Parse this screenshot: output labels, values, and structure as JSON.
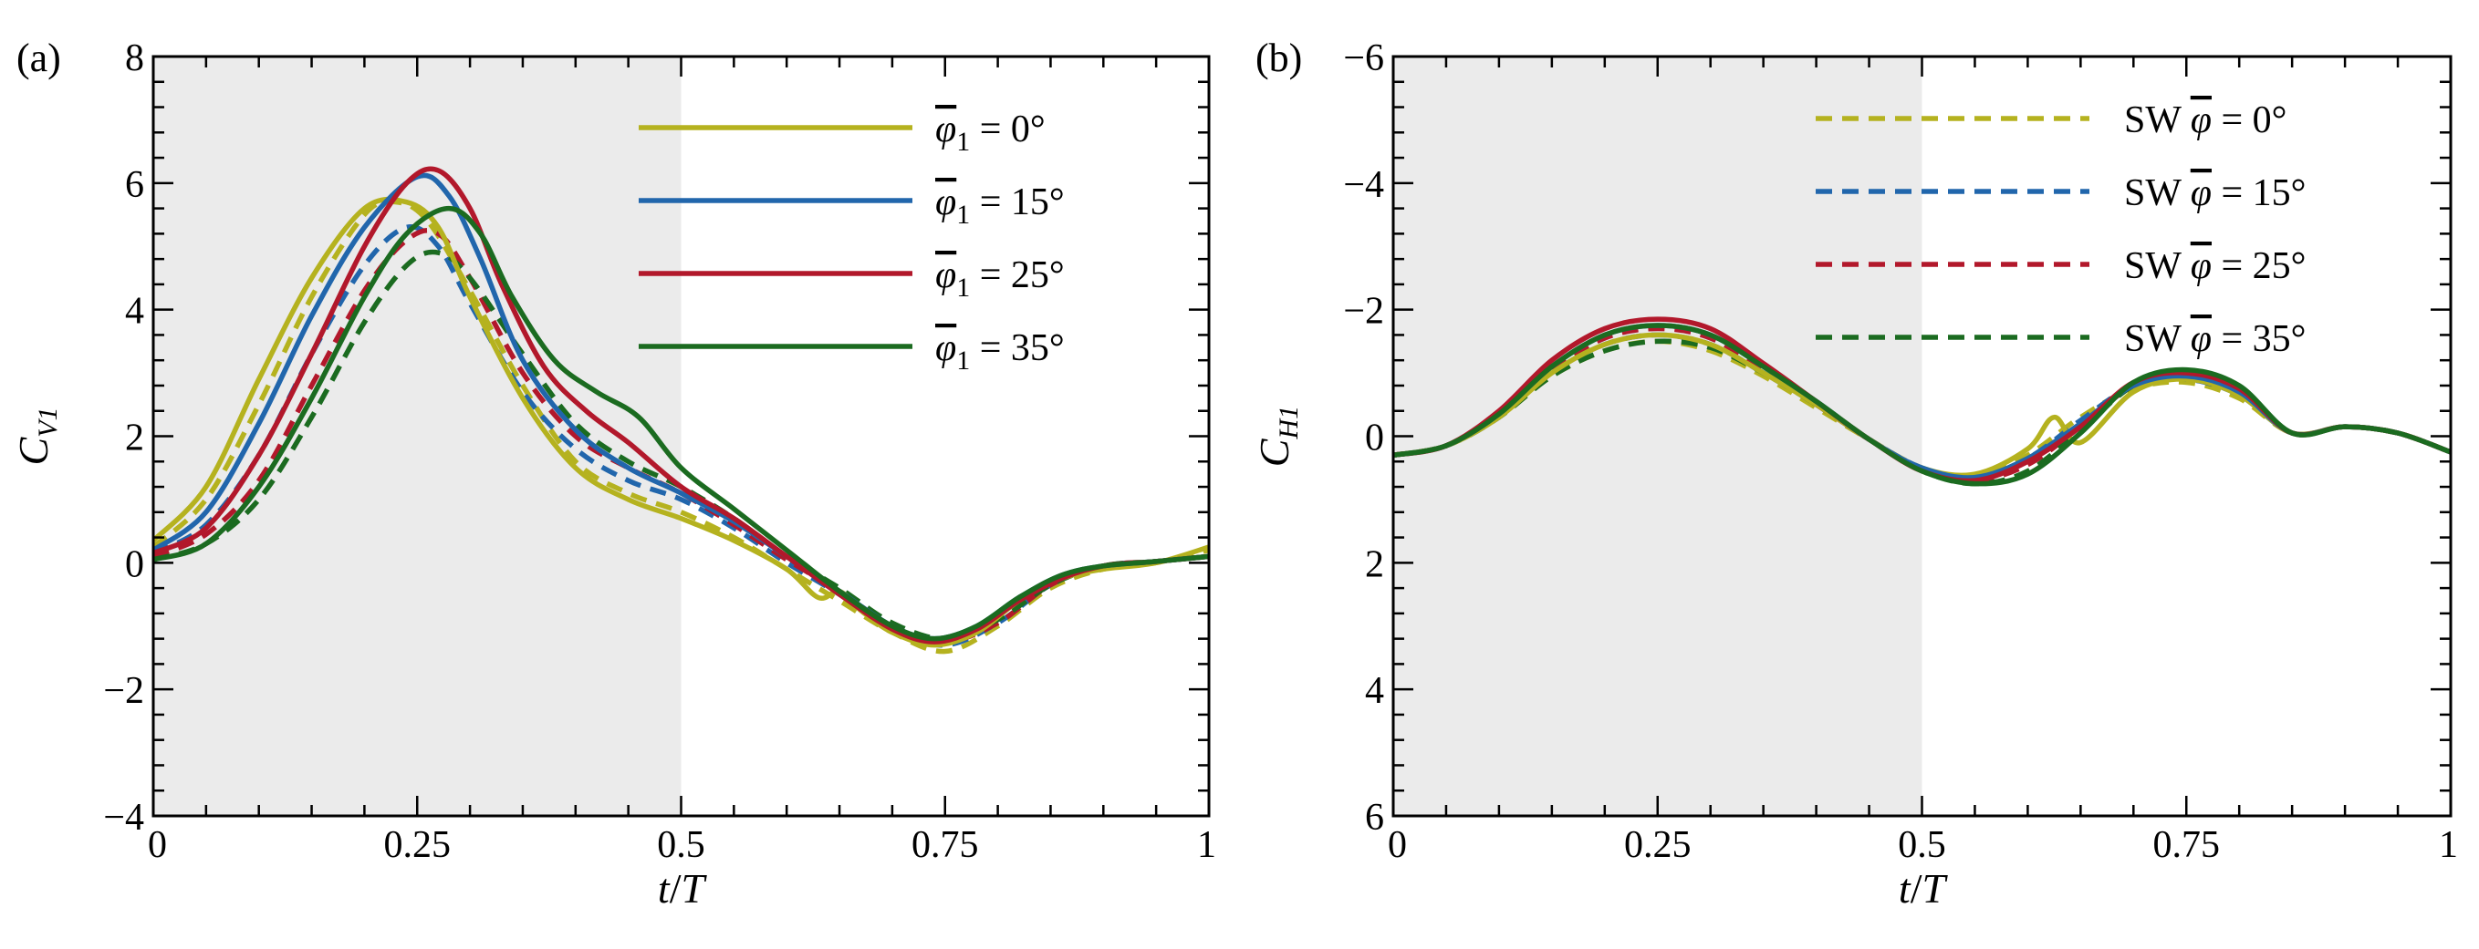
{
  "figure": {
    "panel_a_label": "(a)",
    "panel_b_label": "(b)"
  },
  "chart_data": [
    {
      "type": "line",
      "panel": "(a)",
      "xlabel": "t/T",
      "ylabel": "C_V1",
      "xlim": [
        0,
        1
      ],
      "ylim": [
        -4,
        8
      ],
      "y_inverted": false,
      "x_ticks": [
        0,
        0.25,
        0.5,
        0.75,
        1
      ],
      "x_tick_labels": [
        "0",
        "0.25",
        "0.5",
        "0.75",
        "1"
      ],
      "y_ticks": [
        -4,
        -2,
        0,
        2,
        4,
        6,
        8
      ],
      "y_tick_labels": [
        "−4",
        "−2",
        "0",
        "2",
        "4",
        "6",
        "8"
      ],
      "shaded_region_x": [
        0,
        0.5
      ],
      "legend_position": "top-right",
      "series": [
        {
          "name": "φ̄1 = 0°",
          "legend_prefix": "",
          "legend_symbol": "φ",
          "legend_subscript": "1",
          "legend_value": " = 0°",
          "color": "#b5b21f",
          "dash": "solid",
          "in_legend": true,
          "x": [
            0,
            0.05,
            0.1,
            0.15,
            0.2,
            0.24,
            0.27,
            0.3,
            0.35,
            0.4,
            0.45,
            0.5,
            0.55,
            0.6,
            0.63,
            0.65,
            0.67,
            0.7,
            0.74,
            0.78,
            0.82,
            0.86,
            0.9,
            0.95,
            1
          ],
          "y": [
            0.35,
            1.2,
            2.9,
            4.5,
            5.6,
            5.7,
            5.3,
            4.2,
            2.6,
            1.5,
            1.0,
            0.7,
            0.35,
            -0.1,
            -0.55,
            -0.45,
            -0.75,
            -1.1,
            -1.3,
            -1.1,
            -0.6,
            -0.25,
            -0.1,
            0.0,
            0.25
          ]
        },
        {
          "name": "φ̄1 = 15°",
          "legend_prefix": "",
          "legend_symbol": "φ",
          "legend_subscript": "1",
          "legend_value": " = 15°",
          "color": "#2166ac",
          "dash": "solid",
          "in_legend": true,
          "x": [
            0,
            0.05,
            0.1,
            0.15,
            0.2,
            0.25,
            0.28,
            0.31,
            0.35,
            0.4,
            0.45,
            0.5,
            0.55,
            0.6,
            0.65,
            0.7,
            0.74,
            0.78,
            0.82,
            0.86,
            0.9,
            0.95,
            1
          ],
          "y": [
            0.2,
            0.8,
            2.2,
            3.9,
            5.3,
            6.1,
            5.8,
            4.8,
            3.2,
            2.1,
            1.5,
            1.1,
            0.65,
            0.1,
            -0.45,
            -1.0,
            -1.2,
            -1.0,
            -0.55,
            -0.2,
            -0.05,
            0.02,
            0.1
          ]
        },
        {
          "name": "φ̄1 = 25°",
          "legend_prefix": "",
          "legend_symbol": "φ",
          "legend_subscript": "1",
          "legend_value": " = 25°",
          "color": "#b2182b",
          "dash": "solid",
          "in_legend": true,
          "x": [
            0,
            0.05,
            0.1,
            0.15,
            0.2,
            0.24,
            0.27,
            0.3,
            0.33,
            0.37,
            0.41,
            0.45,
            0.5,
            0.55,
            0.6,
            0.65,
            0.7,
            0.74,
            0.78,
            0.82,
            0.86,
            0.9,
            0.95,
            1
          ],
          "y": [
            0.15,
            0.55,
            1.7,
            3.3,
            5.0,
            6.0,
            6.2,
            5.6,
            4.4,
            3.1,
            2.4,
            1.9,
            1.2,
            0.7,
            0.1,
            -0.5,
            -1.05,
            -1.25,
            -1.05,
            -0.6,
            -0.25,
            -0.05,
            0.02,
            0.1
          ]
        },
        {
          "name": "φ̄1 = 35°",
          "legend_prefix": "",
          "legend_symbol": "φ",
          "legend_subscript": "1",
          "legend_value": " = 35°",
          "color": "#1b6b20",
          "dash": "solid",
          "in_legend": true,
          "x": [
            0,
            0.05,
            0.1,
            0.15,
            0.2,
            0.24,
            0.28,
            0.31,
            0.34,
            0.38,
            0.42,
            0.46,
            0.5,
            0.55,
            0.6,
            0.65,
            0.7,
            0.74,
            0.78,
            0.82,
            0.86,
            0.9,
            0.95,
            1
          ],
          "y": [
            0.05,
            0.3,
            1.2,
            2.6,
            4.2,
            5.2,
            5.6,
            5.2,
            4.2,
            3.2,
            2.7,
            2.3,
            1.5,
            0.85,
            0.2,
            -0.45,
            -1.0,
            -1.2,
            -1.0,
            -0.55,
            -0.2,
            -0.05,
            0.02,
            0.1
          ]
        },
        {
          "name": "SW 0°",
          "color": "#b5b21f",
          "dash": "dashed",
          "in_legend": false,
          "x": [
            0,
            0.05,
            0.1,
            0.15,
            0.2,
            0.23,
            0.26,
            0.3,
            0.35,
            0.4,
            0.45,
            0.5,
            0.55,
            0.6,
            0.65,
            0.7,
            0.75,
            0.8,
            0.85,
            0.9,
            0.95,
            1
          ],
          "y": [
            0.25,
            1.0,
            2.5,
            4.2,
            5.5,
            5.7,
            5.4,
            4.3,
            2.8,
            1.6,
            1.1,
            0.8,
            0.4,
            -0.1,
            -0.6,
            -1.1,
            -1.4,
            -1.0,
            -0.4,
            -0.1,
            0.0,
            0.2
          ]
        },
        {
          "name": "SW 15°",
          "color": "#2166ac",
          "dash": "dashed",
          "in_legend": false,
          "x": [
            0,
            0.05,
            0.1,
            0.15,
            0.2,
            0.24,
            0.27,
            0.3,
            0.35,
            0.4,
            0.45,
            0.5,
            0.55,
            0.6,
            0.65,
            0.7,
            0.75,
            0.8,
            0.85,
            0.9,
            0.95,
            1
          ],
          "y": [
            0.15,
            0.6,
            1.7,
            3.3,
            4.7,
            5.3,
            5.0,
            4.1,
            2.7,
            1.8,
            1.3,
            1.0,
            0.55,
            0.0,
            -0.5,
            -1.05,
            -1.3,
            -0.95,
            -0.35,
            -0.05,
            0.02,
            0.1
          ]
        },
        {
          "name": "SW 25°",
          "color": "#b2182b",
          "dash": "dashed",
          "in_legend": false,
          "x": [
            0,
            0.05,
            0.1,
            0.15,
            0.2,
            0.24,
            0.27,
            0.3,
            0.35,
            0.4,
            0.45,
            0.5,
            0.55,
            0.6,
            0.65,
            0.7,
            0.75,
            0.8,
            0.85,
            0.9,
            0.95,
            1
          ],
          "y": [
            0.1,
            0.45,
            1.3,
            2.8,
            4.3,
            5.1,
            5.2,
            4.5,
            3.0,
            2.0,
            1.5,
            1.1,
            0.6,
            0.05,
            -0.45,
            -1.0,
            -1.25,
            -0.95,
            -0.35,
            -0.05,
            0.02,
            0.1
          ]
        },
        {
          "name": "SW 35°",
          "color": "#1b6b20",
          "dash": "dashed",
          "in_legend": false,
          "x": [
            0,
            0.05,
            0.1,
            0.15,
            0.2,
            0.24,
            0.27,
            0.3,
            0.35,
            0.4,
            0.45,
            0.5,
            0.55,
            0.6,
            0.65,
            0.7,
            0.75,
            0.8,
            0.85,
            0.9,
            0.95,
            1
          ],
          "y": [
            0.05,
            0.3,
            1.0,
            2.3,
            3.8,
            4.7,
            4.9,
            4.5,
            3.3,
            2.2,
            1.6,
            1.2,
            0.7,
            0.1,
            -0.4,
            -0.95,
            -1.2,
            -0.9,
            -0.35,
            -0.05,
            0.02,
            0.1
          ]
        }
      ]
    },
    {
      "type": "line",
      "panel": "(b)",
      "xlabel": "t/T",
      "ylabel": "C_H1",
      "xlim": [
        0,
        1
      ],
      "ylim": [
        -6,
        6
      ],
      "y_inverted": true,
      "x_ticks": [
        0,
        0.25,
        0.5,
        0.75,
        1
      ],
      "x_tick_labels": [
        "0",
        "0.25",
        "0.5",
        "0.75",
        "1"
      ],
      "y_ticks": [
        -6,
        -4,
        -2,
        0,
        2,
        4,
        6
      ],
      "y_tick_labels": [
        "−6",
        "−4",
        "−2",
        "0",
        "2",
        "4",
        "6"
      ],
      "shaded_region_x": [
        0,
        0.5
      ],
      "legend_position": "top-right",
      "series": [
        {
          "name": "SW φ̄ = 0°",
          "legend_prefix": "SW ",
          "legend_symbol": "φ",
          "legend_subscript": "",
          "legend_value": " = 0°",
          "color": "#b5b21f",
          "dash": "dashed",
          "in_legend": true,
          "x": [
            0,
            0.05,
            0.1,
            0.15,
            0.2,
            0.25,
            0.3,
            0.35,
            0.4,
            0.45,
            0.5,
            0.55,
            0.6,
            0.65,
            0.7,
            0.75,
            0.8,
            0.85,
            0.9,
            0.95,
            1
          ],
          "y": [
            0.3,
            0.15,
            -0.3,
            -0.95,
            -1.35,
            -1.5,
            -1.35,
            -0.95,
            -0.45,
            0.05,
            0.5,
            0.65,
            0.3,
            -0.3,
            -0.75,
            -0.85,
            -0.6,
            -0.05,
            -0.15,
            -0.05,
            0.25
          ]
        },
        {
          "name": "SW φ̄ = 15°",
          "legend_prefix": "SW ",
          "legend_symbol": "φ",
          "legend_subscript": "",
          "legend_value": " = 15°",
          "color": "#2166ac",
          "dash": "dashed",
          "in_legend": true,
          "x": [
            0,
            0.05,
            0.1,
            0.15,
            0.2,
            0.25,
            0.3,
            0.35,
            0.4,
            0.45,
            0.5,
            0.55,
            0.6,
            0.65,
            0.7,
            0.75,
            0.8,
            0.85,
            0.9,
            0.95,
            1
          ],
          "y": [
            0.3,
            0.15,
            -0.3,
            -1.0,
            -1.45,
            -1.6,
            -1.45,
            -1.0,
            -0.5,
            0.05,
            0.5,
            0.65,
            0.35,
            -0.25,
            -0.8,
            -0.9,
            -0.65,
            -0.05,
            -0.15,
            -0.05,
            0.25
          ]
        },
        {
          "name": "SW φ̄ = 25°",
          "legend_prefix": "SW ",
          "legend_symbol": "φ",
          "legend_subscript": "",
          "legend_value": " = 25°",
          "color": "#b2182b",
          "dash": "dashed",
          "in_legend": true,
          "x": [
            0,
            0.05,
            0.1,
            0.15,
            0.2,
            0.25,
            0.3,
            0.35,
            0.4,
            0.45,
            0.5,
            0.55,
            0.6,
            0.65,
            0.7,
            0.75,
            0.8,
            0.85,
            0.9,
            0.95,
            1
          ],
          "y": [
            0.3,
            0.15,
            -0.35,
            -1.05,
            -1.55,
            -1.7,
            -1.55,
            -1.05,
            -0.5,
            0.05,
            0.55,
            0.7,
            0.45,
            -0.15,
            -0.8,
            -0.95,
            -0.7,
            -0.05,
            -0.15,
            -0.05,
            0.25
          ]
        },
        {
          "name": "SW φ̄ = 35°",
          "legend_prefix": "SW ",
          "legend_symbol": "φ",
          "legend_subscript": "",
          "legend_value": " = 35°",
          "color": "#1b6b20",
          "dash": "dashed",
          "in_legend": true,
          "x": [
            0,
            0.05,
            0.1,
            0.15,
            0.2,
            0.25,
            0.3,
            0.35,
            0.4,
            0.45,
            0.5,
            0.55,
            0.6,
            0.65,
            0.7,
            0.75,
            0.8,
            0.85,
            0.9,
            0.95,
            1
          ],
          "y": [
            0.3,
            0.15,
            -0.3,
            -0.95,
            -1.35,
            -1.5,
            -1.4,
            -1.0,
            -0.5,
            0.05,
            0.55,
            0.75,
            0.55,
            -0.1,
            -0.8,
            -1.0,
            -0.75,
            -0.05,
            -0.15,
            -0.05,
            0.25
          ]
        },
        {
          "name": "0°",
          "color": "#b5b21f",
          "dash": "solid",
          "in_legend": false,
          "x": [
            0,
            0.05,
            0.1,
            0.15,
            0.2,
            0.25,
            0.3,
            0.35,
            0.4,
            0.45,
            0.5,
            0.55,
            0.6,
            0.625,
            0.65,
            0.7,
            0.75,
            0.8,
            0.85,
            0.9,
            0.95,
            1
          ],
          "y": [
            0.3,
            0.15,
            -0.3,
            -1.0,
            -1.45,
            -1.6,
            -1.45,
            -1.0,
            -0.5,
            0.05,
            0.5,
            0.6,
            0.2,
            -0.3,
            0.1,
            -0.7,
            -0.9,
            -0.65,
            -0.05,
            -0.15,
            -0.05,
            0.25
          ]
        },
        {
          "name": "15°",
          "color": "#2166ac",
          "dash": "solid",
          "in_legend": false,
          "x": [
            0,
            0.05,
            0.1,
            0.15,
            0.2,
            0.25,
            0.3,
            0.35,
            0.4,
            0.45,
            0.5,
            0.55,
            0.6,
            0.65,
            0.7,
            0.75,
            0.8,
            0.85,
            0.9,
            0.95,
            1
          ],
          "y": [
            0.3,
            0.15,
            -0.35,
            -1.1,
            -1.6,
            -1.75,
            -1.6,
            -1.1,
            -0.55,
            0.05,
            0.5,
            0.65,
            0.35,
            -0.2,
            -0.8,
            -0.95,
            -0.7,
            -0.05,
            -0.15,
            -0.05,
            0.25
          ]
        },
        {
          "name": "25°",
          "color": "#b2182b",
          "dash": "solid",
          "in_legend": false,
          "x": [
            0,
            0.05,
            0.1,
            0.15,
            0.2,
            0.25,
            0.3,
            0.35,
            0.4,
            0.45,
            0.5,
            0.55,
            0.6,
            0.65,
            0.7,
            0.75,
            0.8,
            0.85,
            0.9,
            0.95,
            1
          ],
          "y": [
            0.3,
            0.15,
            -0.4,
            -1.2,
            -1.7,
            -1.85,
            -1.7,
            -1.15,
            -0.55,
            0.05,
            0.55,
            0.7,
            0.4,
            -0.15,
            -0.85,
            -1.0,
            -0.75,
            -0.05,
            -0.15,
            -0.05,
            0.25
          ]
        },
        {
          "name": "35°",
          "color": "#1b6b20",
          "dash": "solid",
          "in_legend": false,
          "x": [
            0,
            0.05,
            0.1,
            0.15,
            0.2,
            0.25,
            0.3,
            0.35,
            0.4,
            0.45,
            0.5,
            0.55,
            0.6,
            0.65,
            0.7,
            0.75,
            0.8,
            0.85,
            0.9,
            0.95,
            1
          ],
          "y": [
            0.3,
            0.15,
            -0.35,
            -1.1,
            -1.6,
            -1.75,
            -1.6,
            -1.1,
            -0.55,
            0.05,
            0.55,
            0.75,
            0.6,
            -0.05,
            -0.85,
            -1.05,
            -0.8,
            -0.05,
            -0.15,
            -0.05,
            0.25
          ]
        }
      ]
    }
  ]
}
